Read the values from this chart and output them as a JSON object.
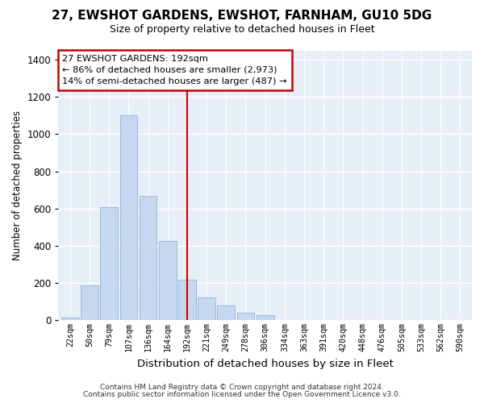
{
  "title1": "27, EWSHOT GARDENS, EWSHOT, FARNHAM, GU10 5DG",
  "title2": "Size of property relative to detached houses in Fleet",
  "xlabel": "Distribution of detached houses by size in Fleet",
  "ylabel": "Number of detached properties",
  "bar_labels": [
    "22sqm",
    "50sqm",
    "79sqm",
    "107sqm",
    "136sqm",
    "164sqm",
    "192sqm",
    "221sqm",
    "249sqm",
    "278sqm",
    "306sqm",
    "334sqm",
    "363sqm",
    "391sqm",
    "420sqm",
    "448sqm",
    "476sqm",
    "505sqm",
    "533sqm",
    "562sqm",
    "590sqm"
  ],
  "bar_values": [
    15,
    190,
    610,
    1100,
    670,
    425,
    220,
    125,
    80,
    40,
    28,
    0,
    0,
    0,
    0,
    0,
    0,
    0,
    0,
    0,
    0
  ],
  "marker_index": 6,
  "bar_color": "#c5d8f0",
  "bar_edge_color": "#91b4d8",
  "marker_color": "#cc0000",
  "annotation_text": "27 EWSHOT GARDENS: 192sqm\n← 86% of detached houses are smaller (2,973)\n14% of semi-detached houses are larger (487) →",
  "ylim": [
    0,
    1450
  ],
  "yticks": [
    0,
    200,
    400,
    600,
    800,
    1000,
    1200,
    1400
  ],
  "footer1": "Contains HM Land Registry data © Crown copyright and database right 2024.",
  "footer2": "Contains public sector information licensed under the Open Government Licence v3.0.",
  "bg_color": "#ffffff",
  "plot_bg_color": "#e8eef8",
  "grid_color": "#ffffff",
  "annotation_box_color": "#ffffff",
  "annotation_border_color": "#cc0000",
  "title1_fontsize": 11,
  "title2_fontsize": 9
}
